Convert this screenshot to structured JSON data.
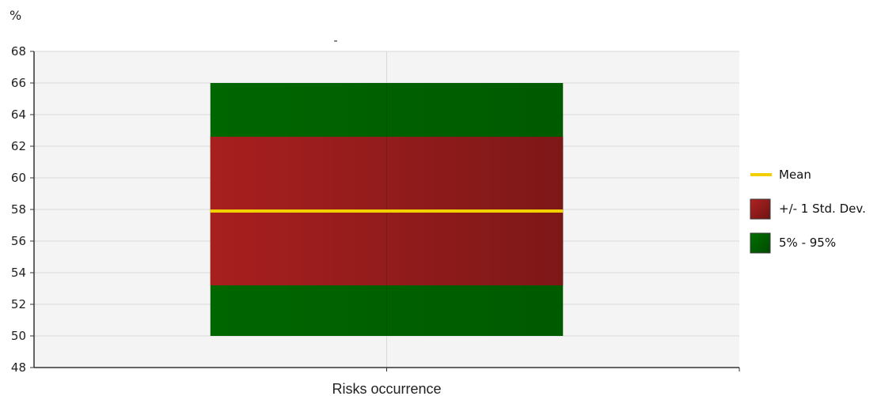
{
  "chart_data": {
    "type": "box",
    "title": "-",
    "ylabel": "%",
    "xlabel": "",
    "categories": [
      "Risks occurrence"
    ],
    "ylim": [
      48,
      68
    ],
    "yticks": [
      48,
      50,
      52,
      54,
      56,
      58,
      60,
      62,
      64,
      66,
      68
    ],
    "grid": true,
    "legend_position": "right",
    "series": [
      {
        "category": "Risks occurrence",
        "p5": 50,
        "p95": 66,
        "std_low": 53.2,
        "std_high": 62.6,
        "mean": 57.9
      }
    ],
    "legend": [
      {
        "label": "Mean",
        "kind": "line",
        "color": "#f2d000"
      },
      {
        "label": "+/- 1 Std. Dev.",
        "kind": "box",
        "color": "#a01c1c"
      },
      {
        "label": "5% - 95%",
        "kind": "box",
        "color": "#006400"
      }
    ],
    "colors": {
      "plot_background": "#f4f4f4",
      "grid": "#d9d9d9",
      "axis": "#333333",
      "mean": "#f2d000",
      "std": "#a01c1c",
      "range": "#006400"
    }
  }
}
